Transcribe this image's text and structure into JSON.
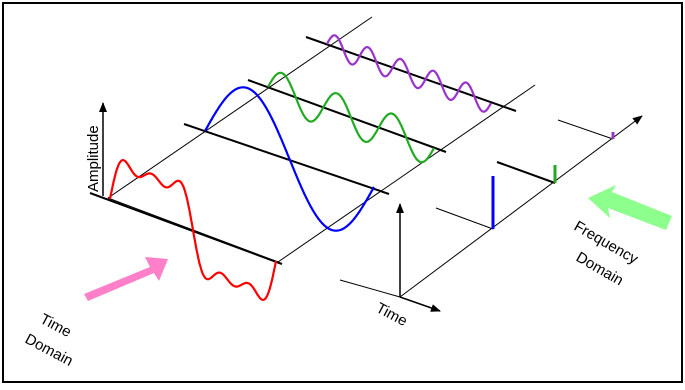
{
  "labels": {
    "amplitude": "Amplitude",
    "time": "Time",
    "time_domain_line1": "Time",
    "time_domain_line2": "Domain",
    "frequency_domain_line1": "Frequency",
    "frequency_domain_line2": "Domain"
  },
  "colors": {
    "frame": "#000000",
    "axis": "#000000",
    "composite_wave": "#ff0000",
    "fundamental_wave": "#0000ff",
    "third_harmonic": "#22aa22",
    "fifth_harmonic": "#9933cc",
    "time_domain_arrow": "#ff7fc8",
    "frequency_domain_arrow": "#8cff8c"
  },
  "icons": {
    "time_domain_arrow": "pink-block-arrow-icon",
    "frequency_domain_arrow": "green-block-arrow-icon"
  }
}
